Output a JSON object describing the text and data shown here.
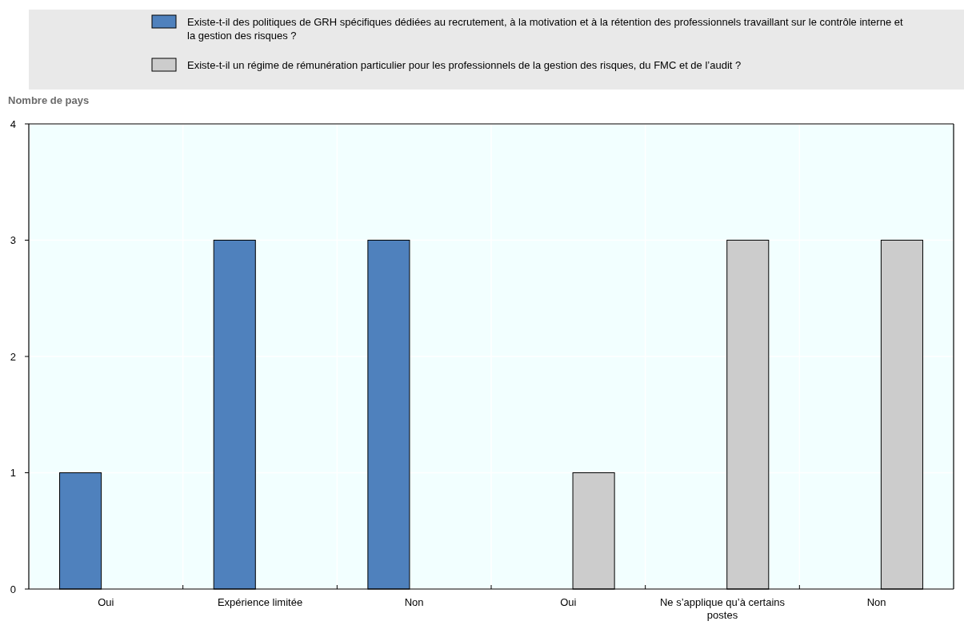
{
  "chart_data": {
    "type": "bar",
    "ylabel": "Nombre de pays",
    "categories": [
      "Oui",
      "Expérience limitée",
      "Non",
      "Oui",
      "Ne s’applique qu’à certains postes",
      "Non"
    ],
    "series": [
      {
        "name": "Existe-t-il des politiques de GRH spécifiques dédiées au recrutement, à la motivation et à la rétention des professionnels travaillant sur le contrôle interne et la gestion des risques ?",
        "color": "#4f81bd",
        "values": [
          1,
          3,
          3,
          null,
          null,
          null
        ]
      },
      {
        "name": "Existe-t-il un régime de rémunération particulier pour les professionnels de la gestion des risques, du FMC et de l’audit ?",
        "color": "#cccccc",
        "values": [
          null,
          null,
          null,
          1,
          3,
          3
        ]
      }
    ],
    "ylim": [
      0,
      4
    ],
    "yticks": [
      0,
      1,
      2,
      3,
      4
    ],
    "grid": true,
    "legend": "top"
  }
}
